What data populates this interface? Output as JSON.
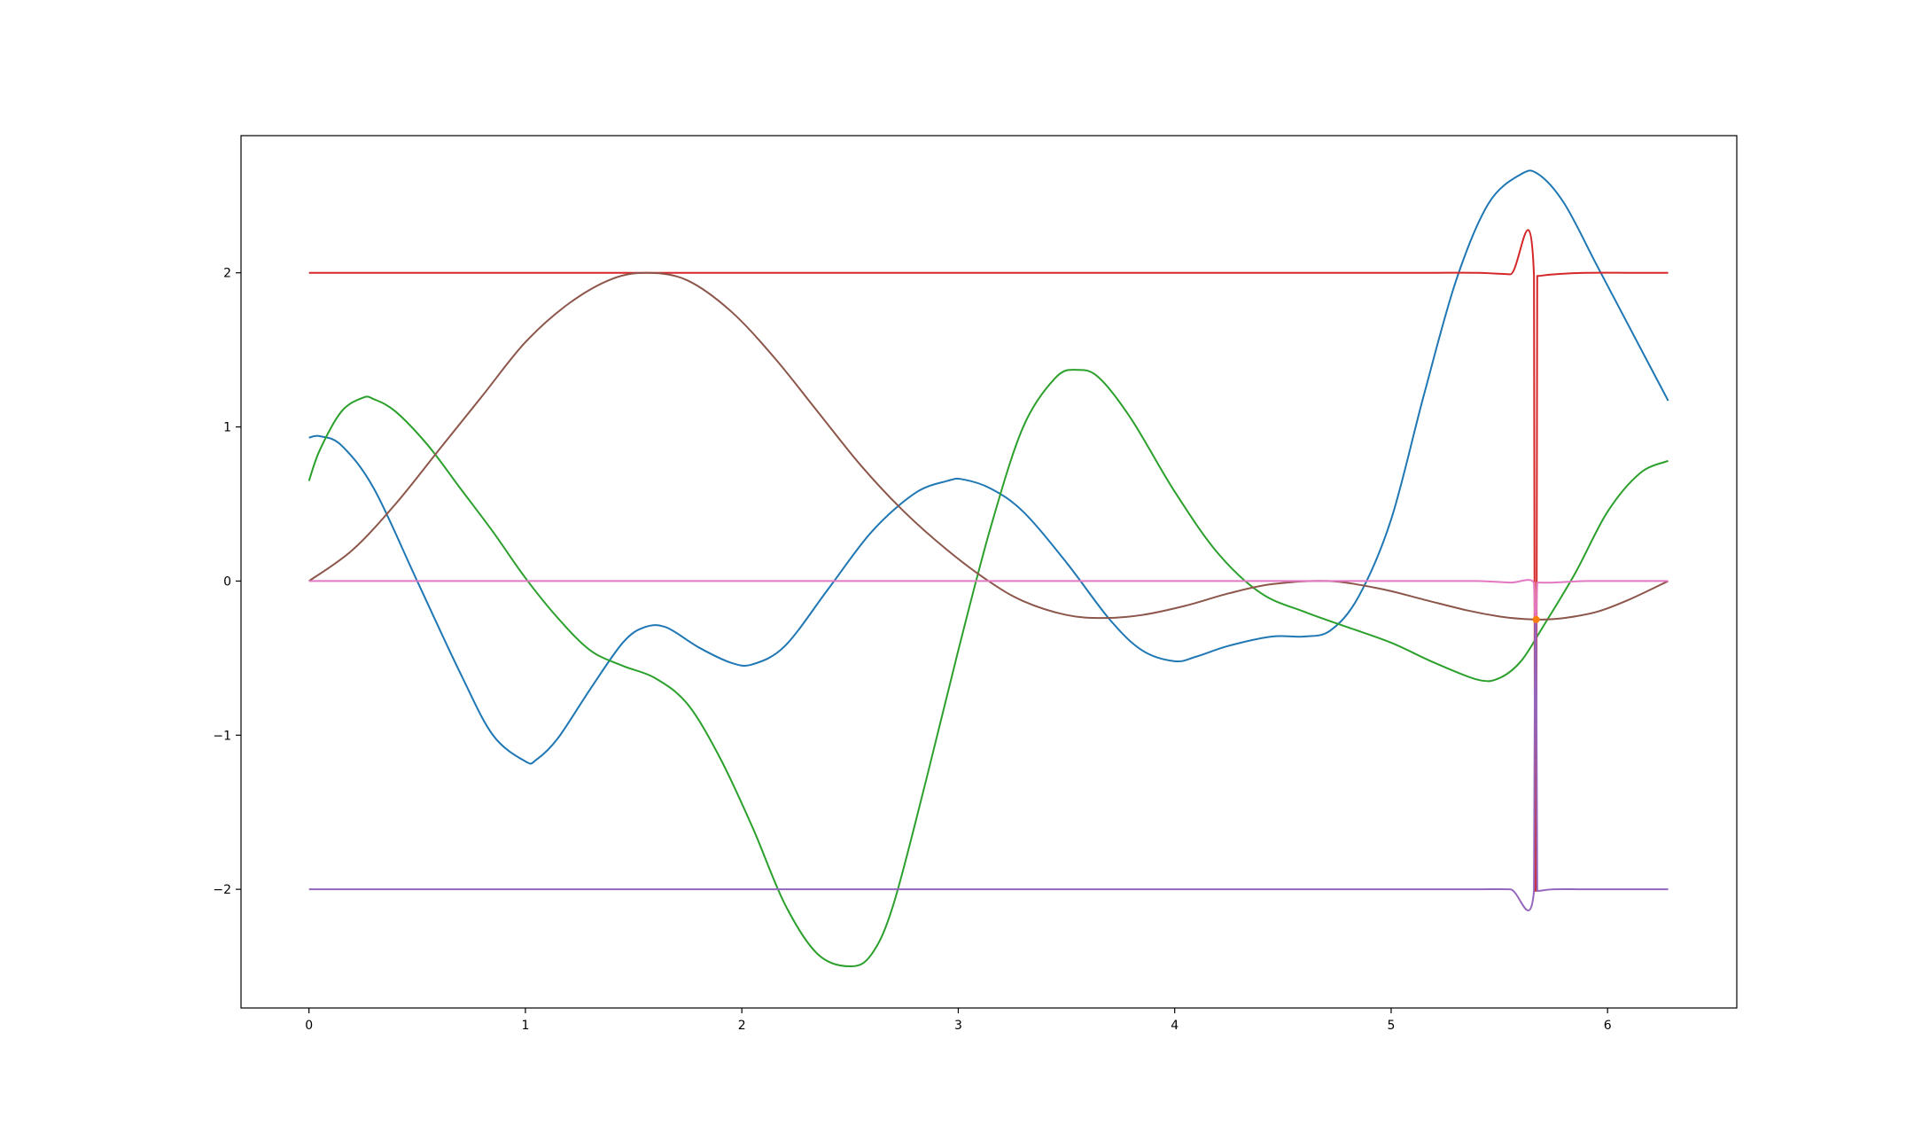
{
  "chart_data": {
    "type": "line",
    "title": "",
    "xlabel": "",
    "ylabel": "",
    "xlim": [
      -0.314,
      6.597
    ],
    "ylim": [
      -2.77,
      2.89
    ],
    "grid": false,
    "legend": "none",
    "x_ticks": [
      0,
      1,
      2,
      3,
      4,
      5,
      6
    ],
    "x_tick_labels": [
      "0",
      "1",
      "2",
      "3",
      "4",
      "5",
      "6"
    ],
    "y_ticks": [
      -2,
      -1,
      0,
      1,
      2
    ],
    "y_tick_labels": [
      "−2",
      "−1",
      "0",
      "1",
      "2"
    ],
    "series": [
      {
        "color": "#1f77b4",
        "x": [
          0.0,
          0.05,
          0.15,
          0.3,
          0.5,
          0.7,
          0.85,
          1.0,
          1.05,
          1.15,
          1.3,
          1.45,
          1.55,
          1.65,
          1.8,
          1.95,
          2.05,
          2.2,
          2.4,
          2.6,
          2.8,
          2.95,
          3.02,
          3.15,
          3.3,
          3.5,
          3.7,
          3.85,
          4.0,
          4.1,
          4.25,
          4.45,
          4.6,
          4.72,
          4.85,
          5.0,
          5.15,
          5.3,
          5.45,
          5.6,
          5.68,
          5.8,
          5.95,
          6.1,
          6.28
        ],
        "y": [
          0.93,
          0.94,
          0.88,
          0.6,
          0.0,
          -0.6,
          -1.0,
          -1.17,
          -1.16,
          -1.02,
          -0.7,
          -0.4,
          -0.3,
          -0.3,
          -0.43,
          -0.53,
          -0.54,
          -0.42,
          -0.05,
          0.32,
          0.57,
          0.65,
          0.66,
          0.6,
          0.45,
          0.12,
          -0.25,
          -0.45,
          -0.52,
          -0.49,
          -0.42,
          -0.36,
          -0.36,
          -0.32,
          -0.1,
          0.4,
          1.2,
          1.95,
          2.45,
          2.64,
          2.64,
          2.45,
          2.05,
          1.65,
          1.17
        ]
      },
      {
        "color": "#2ca02c",
        "x": [
          0.0,
          0.05,
          0.15,
          0.25,
          0.3,
          0.4,
          0.55,
          0.7,
          0.85,
          1.0,
          1.15,
          1.3,
          1.45,
          1.6,
          1.75,
          1.9,
          2.05,
          2.2,
          2.35,
          2.5,
          2.6,
          2.7,
          2.85,
          3.0,
          3.15,
          3.3,
          3.45,
          3.55,
          3.65,
          3.8,
          4.0,
          4.2,
          4.4,
          4.6,
          4.8,
          5.0,
          5.2,
          5.4,
          5.5,
          5.6,
          5.7,
          5.85,
          6.0,
          6.15,
          6.28
        ],
        "y": [
          0.65,
          0.85,
          1.1,
          1.19,
          1.18,
          1.1,
          0.88,
          0.6,
          0.32,
          0.02,
          -0.24,
          -0.45,
          -0.55,
          -0.63,
          -0.8,
          -1.15,
          -1.6,
          -2.1,
          -2.42,
          -2.5,
          -2.42,
          -2.1,
          -1.3,
          -0.45,
          0.35,
          1.0,
          1.32,
          1.37,
          1.32,
          1.05,
          0.58,
          0.18,
          -0.08,
          -0.2,
          -0.3,
          -0.4,
          -0.53,
          -0.64,
          -0.63,
          -0.52,
          -0.3,
          0.05,
          0.45,
          0.7,
          0.78
        ]
      },
      {
        "color": "#d62728",
        "x": [
          0.0,
          1.0,
          2.0,
          3.0,
          4.0,
          4.5,
          4.8,
          5.0,
          5.2,
          5.4,
          5.55,
          5.66,
          5.665,
          5.67,
          5.675,
          5.68,
          5.685,
          5.75,
          5.9,
          6.1,
          6.28
        ],
        "y": [
          2.0,
          2.0,
          2.0,
          2.0,
          2.0,
          2.0,
          2.0,
          2.0,
          2.0,
          2.0,
          1.99,
          1.98,
          -2.01,
          -2.01,
          1.98,
          1.98,
          1.98,
          1.99,
          2.0,
          2.0,
          2.0
        ]
      },
      {
        "color": "#9467bd",
        "x": [
          0.0,
          1.0,
          2.0,
          3.0,
          4.0,
          4.5,
          4.8,
          5.0,
          5.2,
          5.4,
          5.55,
          5.66,
          5.665,
          5.67,
          5.675,
          5.68,
          5.685,
          5.75,
          5.9,
          6.1,
          6.28
        ],
        "y": [
          -2.0,
          -2.0,
          -2.0,
          -2.0,
          -2.0,
          -2.0,
          -2.0,
          -2.0,
          -2.0,
          -2.0,
          -2.0,
          -2.01,
          -0.25,
          -0.25,
          -2.01,
          -2.01,
          -2.01,
          -2.0,
          -2.0,
          -2.0,
          -2.0
        ]
      },
      {
        "color": "#8c564b",
        "x": [
          0.0,
          0.2,
          0.4,
          0.6,
          0.8,
          1.0,
          1.2,
          1.4,
          1.57,
          1.75,
          1.95,
          2.15,
          2.35,
          2.55,
          2.75,
          2.95,
          3.14,
          3.3,
          3.5,
          3.67,
          3.85,
          4.05,
          4.25,
          4.45,
          4.71,
          4.95,
          5.15,
          5.35,
          5.5,
          5.6,
          5.7,
          5.8,
          5.95,
          6.1,
          6.28
        ],
        "y": [
          0.0,
          0.2,
          0.5,
          0.85,
          1.2,
          1.55,
          1.8,
          1.96,
          2.0,
          1.95,
          1.75,
          1.45,
          1.1,
          0.75,
          0.45,
          0.2,
          0.0,
          -0.13,
          -0.22,
          -0.24,
          -0.22,
          -0.16,
          -0.08,
          -0.02,
          0.0,
          -0.05,
          -0.12,
          -0.19,
          -0.23,
          -0.245,
          -0.25,
          -0.24,
          -0.2,
          -0.12,
          0.0
        ]
      },
      {
        "color": "#e377c2",
        "x": [
          0.0,
          1.0,
          2.0,
          3.0,
          4.0,
          4.5,
          4.8,
          5.0,
          5.2,
          5.4,
          5.55,
          5.66,
          5.665,
          5.67,
          5.675,
          5.68,
          5.685,
          5.75,
          5.9,
          6.1,
          6.28
        ],
        "y": [
          0.0,
          0.0,
          0.0,
          0.0,
          0.0,
          0.0,
          0.0,
          0.0,
          0.0,
          0.0,
          -0.01,
          -0.01,
          -0.25,
          -0.25,
          -0.01,
          -0.01,
          -0.01,
          -0.01,
          0.0,
          0.0,
          0.0
        ]
      }
    ],
    "markers": [
      {
        "x": 5.67,
        "y": -0.25,
        "color": "#ff7f0e"
      }
    ]
  }
}
